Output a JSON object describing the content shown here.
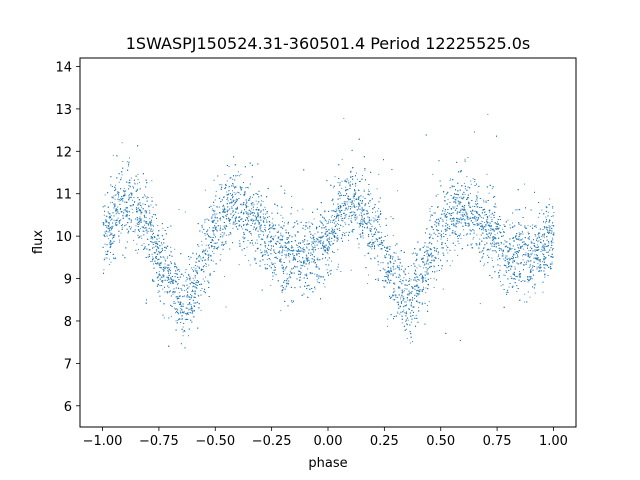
{
  "chart_data": {
    "type": "scatter",
    "title": "1SWASPJ150524.31-360501.4 Period 12225525.0s",
    "xlabel": "phase",
    "ylabel": "flux",
    "xlim": [
      -1.1,
      1.1
    ],
    "ylim": [
      5.5,
      14.2
    ],
    "xticks": [
      -1.0,
      -0.75,
      -0.5,
      -0.25,
      0.0,
      0.25,
      0.5,
      0.75,
      1.0
    ],
    "xtick_labels": [
      "−1.00",
      "−0.75",
      "−0.50",
      "−0.25",
      "0.00",
      "0.25",
      "0.50",
      "0.75",
      "1.00"
    ],
    "yticks": [
      6,
      7,
      8,
      9,
      10,
      11,
      12,
      13,
      14
    ],
    "ytick_labels": [
      "6",
      "7",
      "8",
      "9",
      "10",
      "11",
      "12",
      "13",
      "14"
    ],
    "grid": false,
    "marker_color": "#1f77b4",
    "phase_profile": {
      "phase": [
        0.0,
        0.05,
        0.1,
        0.15,
        0.2,
        0.25,
        0.3,
        0.35,
        0.4,
        0.45,
        0.5,
        0.55,
        0.6,
        0.65,
        0.7,
        0.75,
        0.8,
        0.85,
        0.9,
        0.95,
        1.0
      ],
      "flux": [
        10.0,
        10.5,
        10.8,
        10.6,
        10.2,
        9.5,
        9.0,
        8.4,
        8.8,
        9.6,
        10.2,
        10.6,
        10.7,
        10.5,
        10.2,
        9.9,
        9.6,
        9.5,
        9.5,
        9.7,
        10.0
      ]
    },
    "scatter_spread": 0.45,
    "n_points": 9000
  }
}
